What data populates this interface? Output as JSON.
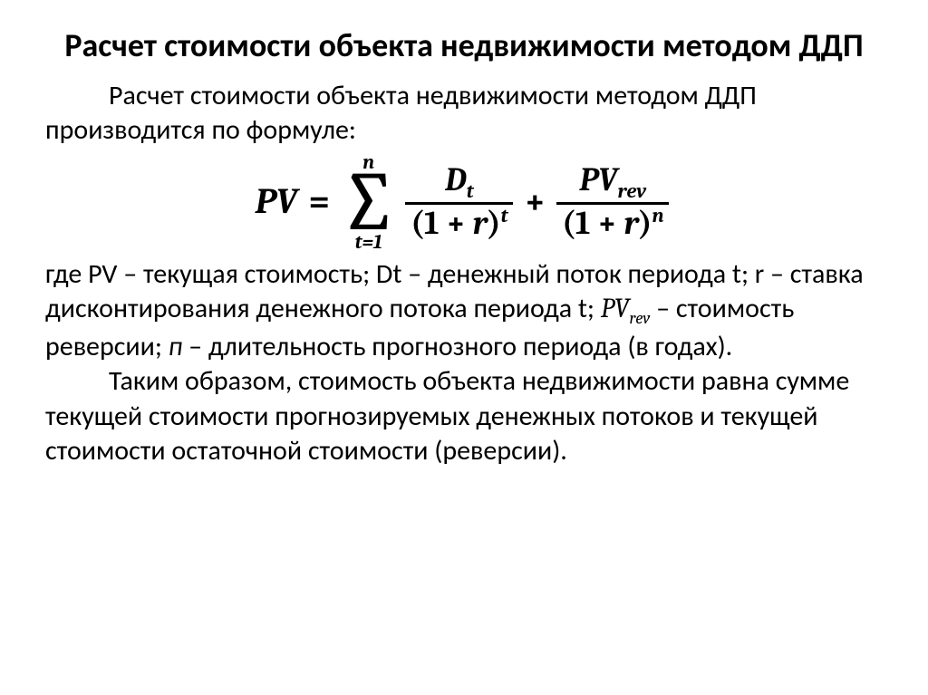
{
  "title": "Расчет стоимости объекта недвижимости методом ДДП",
  "intro": "Расчет стоимости объекта недвижимости методом ДДП производится по формуле:",
  "formula": {
    "lhs": "PV",
    "equals": "=",
    "sum_upper": "n",
    "sigma": "∑",
    "sum_lower": "t=1",
    "frac1_num_var": "D",
    "frac1_num_sub": "t",
    "frac1_den_open": "(",
    "frac1_den_one": "1",
    "frac1_den_plus": "+",
    "frac1_den_r": "r",
    "frac1_den_close": ")",
    "frac1_den_exp": "t",
    "plus": "+",
    "frac2_num_var": "PV",
    "frac2_num_sub": "rev",
    "frac2_den_open": "(",
    "frac2_den_one": "1",
    "frac2_den_plus": "+",
    "frac2_den_r": "r",
    "frac2_den_close": ")",
    "frac2_den_exp": "n"
  },
  "definitions_pre": "где PV – текущая стоимость; Dt – денежный поток периода t; r – ставка  дисконтирования денежного потока периода t; ",
  "definitions_math_var": "PV",
  "definitions_math_sub": "rev",
  "definitions_post": " – стоимость реверсии; ",
  "definitions_n": "п",
  "definitions_tail": " – длительность прогнозного периода (в годах).",
  "conclusion": "Таким образом, стоимость объекта недвижимости равна сумме текущей стоимости прогнозируемых денежных потоков и текущей стоимости остаточной стоимости (реверсии)."
}
